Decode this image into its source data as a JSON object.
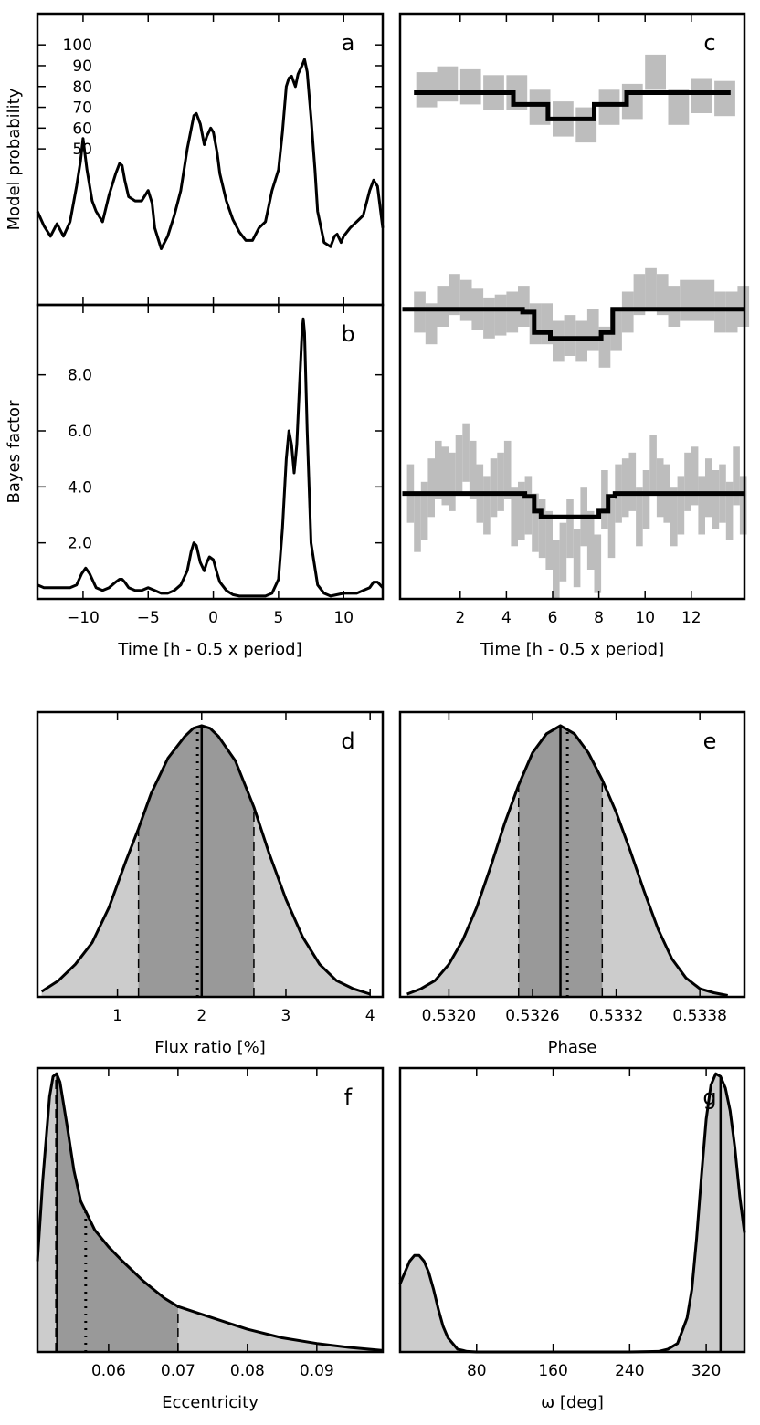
{
  "chart_data": [
    {
      "panel": "a",
      "type": "line",
      "ylabel": "Model probability",
      "xlabel": "",
      "xlim": [
        -13.5,
        13
      ],
      "ylim": [
        -25,
        115
      ],
      "xticks": [
        -10,
        -5,
        0,
        5,
        10
      ],
      "xtick_labels": [
        "",
        "",
        "",
        "",
        ""
      ],
      "yticks": [
        50,
        60,
        70,
        80,
        90,
        100
      ],
      "ytick_labels": [
        "50",
        "60",
        "70",
        "80",
        "90",
        "100"
      ],
      "series": [
        {
          "x": [
            -13.5,
            -13,
            -12.5,
            -12,
            -11.5,
            -11,
            -10.5,
            -10.2,
            -10,
            -9.7,
            -9.3,
            -9,
            -8.5,
            -8,
            -7.5,
            -7.2,
            -7,
            -6.8,
            -6.5,
            -6,
            -5.5,
            -5,
            -4.7,
            -4.5,
            -4,
            -3.5,
            -3,
            -2.5,
            -2,
            -1.5,
            -1.3,
            -1,
            -0.7,
            -0.5,
            -0.2,
            0,
            0.3,
            0.5,
            1,
            1.5,
            2,
            2.5,
            3,
            3.5,
            4,
            4.5,
            5,
            5.3,
            5.6,
            5.8,
            6,
            6.3,
            6.5,
            6.8,
            7,
            7.2,
            7.5,
            7.8,
            8,
            8.5,
            9,
            9.3,
            9.5,
            9.8,
            10,
            10.5,
            11,
            11.5,
            12,
            12.3,
            12.6,
            13
          ],
          "y": [
            20,
            13,
            8,
            14,
            8,
            15,
            32,
            44,
            55,
            40,
            25,
            20,
            15,
            28,
            38,
            43,
            42,
            35,
            27,
            25,
            25,
            30,
            24,
            12,
            2,
            8,
            18,
            30,
            50,
            66,
            67,
            62,
            52,
            56,
            60,
            58,
            48,
            38,
            25,
            16,
            10,
            6,
            6,
            12,
            15,
            30,
            40,
            58,
            80,
            84,
            85,
            80,
            86,
            90,
            93,
            87,
            65,
            40,
            20,
            5,
            3,
            8,
            9,
            5,
            8,
            12,
            15,
            18,
            30,
            35,
            32,
            12
          ]
        }
      ]
    },
    {
      "panel": "b",
      "type": "line",
      "ylabel": "Bayes factor",
      "xlabel": "Time [h - 0.5 x period]",
      "xlim": [
        -13.5,
        13
      ],
      "ylim": [
        0,
        10.5
      ],
      "xticks": [
        -10,
        -5,
        0,
        5,
        10
      ],
      "xtick_labels": [
        "−10",
        "−5",
        "0",
        "5",
        "10"
      ],
      "yticks": [
        2,
        4,
        6,
        8
      ],
      "ytick_labels": [
        "2.0",
        "4.0",
        "6.0",
        "8.0"
      ],
      "series": [
        {
          "x": [
            -13.5,
            -13,
            -12,
            -11,
            -10.5,
            -10.1,
            -9.8,
            -9.5,
            -9,
            -8.5,
            -8,
            -7.5,
            -7.2,
            -7,
            -6.8,
            -6.5,
            -6,
            -5.5,
            -5,
            -4.5,
            -4,
            -3.5,
            -3,
            -2.5,
            -2,
            -1.7,
            -1.5,
            -1.3,
            -1,
            -0.7,
            -0.5,
            -0.3,
            0,
            0.3,
            0.5,
            1,
            1.5,
            2,
            3,
            4,
            4.5,
            5,
            5.3,
            5.6,
            5.8,
            6,
            6.2,
            6.4,
            6.6,
            6.8,
            6.9,
            7,
            7.2,
            7.5,
            8,
            8.5,
            9,
            10,
            11,
            11.5,
            12,
            12.3,
            12.6,
            13
          ],
          "y": [
            0.5,
            0.4,
            0.4,
            0.4,
            0.5,
            0.9,
            1.1,
            0.9,
            0.4,
            0.3,
            0.4,
            0.6,
            0.7,
            0.7,
            0.6,
            0.4,
            0.3,
            0.3,
            0.4,
            0.3,
            0.2,
            0.2,
            0.3,
            0.5,
            1.0,
            1.7,
            2.0,
            1.9,
            1.3,
            1.0,
            1.3,
            1.5,
            1.4,
            0.9,
            0.6,
            0.3,
            0.15,
            0.1,
            0.1,
            0.1,
            0.2,
            0.7,
            2.5,
            5.0,
            6.0,
            5.5,
            4.5,
            5.5,
            7.5,
            9.5,
            10.0,
            9.5,
            6.0,
            2.0,
            0.5,
            0.2,
            0.1,
            0.2,
            0.2,
            0.3,
            0.4,
            0.6,
            0.6,
            0.4
          ]
        }
      ]
    },
    {
      "panel": "c",
      "type": "line",
      "xlabel": "Time [h - 0.5 x period]",
      "ylabel": "",
      "xlim": [
        -0.6,
        14.3
      ],
      "ylim": [
        0,
        100
      ],
      "xticks": [
        2,
        4,
        6,
        8,
        10,
        12
      ],
      "xtick_labels": [
        "2",
        "4",
        "6",
        "8",
        "10",
        "12"
      ],
      "series": [
        {
          "name": "",
          "data_x": [
            0.1,
            1.0,
            2.0,
            3.0,
            4.0,
            5.0,
            6.0,
            7.0,
            8.0,
            9.0,
            10.0,
            11.0,
            12.0,
            13.0
          ],
          "data_y": [
            87,
            88,
            87.5,
            86.5,
            86.5,
            84,
            82,
            81,
            84,
            85,
            90,
            84,
            86,
            85.5
          ],
          "model_x": [
            0,
            4.3,
            4.3,
            5.8,
            5.8,
            7.8,
            7.8,
            9.2,
            9.2,
            13.7
          ],
          "model_y": [
            86.5,
            86.5,
            84.5,
            84.5,
            82,
            82,
            84.5,
            84.5,
            86.5,
            86.5
          ]
        },
        {
          "name": "",
          "data_x": [
            0.0,
            0.5,
            1.0,
            1.5,
            2.0,
            2.5,
            3.0,
            3.5,
            4.0,
            4.5,
            5.0,
            5.5,
            6.0,
            6.5,
            7.0,
            7.5,
            8.0,
            8.5,
            9.0,
            9.5,
            10.0,
            10.5,
            11.0,
            11.5,
            12.0,
            12.5,
            13.0,
            13.5,
            14.0
          ],
          "data_y": [
            49,
            47,
            50,
            52,
            51,
            49.5,
            48,
            48.5,
            49,
            50,
            47,
            47,
            44,
            45,
            44,
            46,
            43,
            46,
            49,
            52,
            53,
            52,
            50,
            51,
            51,
            51,
            49,
            49,
            50
          ],
          "model_x": [
            -0.5,
            4.7,
            4.7,
            5.2,
            5.2,
            5.9,
            5.9,
            8.1,
            8.1,
            8.6,
            8.6,
            14.3
          ],
          "model_y": [
            49.5,
            49.5,
            49,
            49,
            45.5,
            45.5,
            44.5,
            44.5,
            45.5,
            45.5,
            49.5,
            49.5
          ]
        },
        {
          "name": "",
          "data_x": [
            -0.3,
            0.0,
            0.3,
            0.6,
            0.9,
            1.2,
            1.5,
            1.8,
            2.1,
            2.4,
            2.7,
            3.0,
            3.3,
            3.6,
            3.9,
            4.2,
            4.5,
            4.8,
            5.1,
            5.4,
            5.7,
            6.0,
            6.3,
            6.6,
            6.9,
            7.2,
            7.5,
            7.8,
            8.1,
            8.4,
            8.7,
            9.0,
            9.3,
            9.6,
            9.9,
            10.2,
            10.5,
            10.8,
            11.1,
            11.4,
            11.7,
            12.0,
            12.3,
            12.6,
            12.9,
            13.2,
            13.5,
            13.8,
            14.1
          ],
          "data_y": [
            18,
            13,
            15,
            19,
            22,
            21,
            20,
            23,
            25,
            22,
            18,
            16,
            19,
            20,
            22,
            14,
            15,
            16,
            13,
            12,
            10,
            5,
            8,
            12,
            7,
            14,
            10,
            6,
            17,
            12,
            18,
            19,
            20,
            14,
            17,
            23,
            19,
            18,
            14,
            16,
            20,
            21,
            16,
            19,
            17,
            18,
            15,
            21,
            16
          ],
          "model_x": [
            -0.5,
            4.8,
            4.8,
            5.2,
            5.2,
            5.5,
            5.5,
            8.0,
            8.0,
            8.4,
            8.4,
            8.7,
            8.7,
            14.3
          ],
          "model_y": [
            18,
            18,
            17.5,
            17.5,
            15,
            15,
            14,
            14,
            15,
            15,
            17.5,
            17.5,
            18,
            18
          ]
        }
      ]
    },
    {
      "panel": "d",
      "type": "area",
      "xlabel": "Flux ratio [%]",
      "ylabel": "",
      "xlim": [
        0.05,
        4.15
      ],
      "ylim": [
        0,
        1.05
      ],
      "xticks": [
        1,
        2,
        3,
        4
      ],
      "xtick_labels": [
        "1",
        "2",
        "3",
        "4"
      ],
      "median": 2.0,
      "mean": 1.95,
      "interval_68": [
        1.25,
        2.62
      ],
      "max_density": 1.0,
      "pdf": {
        "x": [
          0.1,
          0.3,
          0.5,
          0.7,
          0.9,
          1.1,
          1.25,
          1.4,
          1.6,
          1.8,
          1.9,
          2.0,
          2.1,
          2.2,
          2.4,
          2.62,
          2.8,
          3.0,
          3.2,
          3.4,
          3.6,
          3.8,
          4.0
        ],
        "y": [
          0.02,
          0.06,
          0.12,
          0.2,
          0.33,
          0.5,
          0.62,
          0.75,
          0.88,
          0.96,
          0.99,
          1.0,
          0.99,
          0.96,
          0.87,
          0.7,
          0.53,
          0.36,
          0.22,
          0.12,
          0.06,
          0.03,
          0.01
        ]
      }
    },
    {
      "panel": "e",
      "type": "area",
      "xlabel": "Phase",
      "ylabel": "",
      "xlim": [
        0.53165,
        0.53412
      ],
      "ylim": [
        0,
        1.05
      ],
      "xticks": [
        0.532,
        0.5326,
        0.5332,
        0.5338
      ],
      "xtick_labels": [
        "0.5320",
        "0.5326",
        "0.5332",
        "0.5338"
      ],
      "median": 0.5328,
      "mean": 0.53285,
      "interval_68": [
        0.5325,
        0.5331
      ],
      "max_density": 1.0,
      "pdf": {
        "x": [
          0.5317,
          0.5318,
          0.5319,
          0.532,
          0.5321,
          0.5322,
          0.5323,
          0.5324,
          0.5325,
          0.5326,
          0.5327,
          0.5328,
          0.5329,
          0.533,
          0.5331,
          0.5332,
          0.5333,
          0.5334,
          0.5335,
          0.5336,
          0.5337,
          0.5338,
          0.5339,
          0.534
        ],
        "y": [
          0.01,
          0.03,
          0.06,
          0.12,
          0.21,
          0.33,
          0.48,
          0.64,
          0.78,
          0.9,
          0.97,
          1.0,
          0.97,
          0.9,
          0.8,
          0.68,
          0.54,
          0.39,
          0.25,
          0.14,
          0.07,
          0.03,
          0.015,
          0.005
        ]
      }
    },
    {
      "panel": "f",
      "type": "area",
      "xlabel": "Eccentricity",
      "ylabel": "",
      "xlim": [
        0.04975,
        0.0995
      ],
      "ylim": [
        0,
        1.0
      ],
      "xticks": [
        0.06,
        0.07,
        0.08,
        0.09
      ],
      "xtick_labels": [
        "0.06",
        "0.07",
        "0.08",
        "0.09"
      ],
      "median": 0.0526,
      "mean": 0.0567,
      "interval_68": [
        0.0524,
        0.07
      ],
      "max_density": 0.98,
      "pdf": {
        "x": [
          0.04975,
          0.0505,
          0.0515,
          0.052,
          0.0525,
          0.053,
          0.054,
          0.055,
          0.056,
          0.058,
          0.06,
          0.062,
          0.065,
          0.068,
          0.07,
          0.075,
          0.08,
          0.085,
          0.09,
          0.095,
          0.0995
        ],
        "y": [
          0.32,
          0.6,
          0.9,
          0.97,
          0.98,
          0.95,
          0.8,
          0.64,
          0.53,
          0.43,
          0.37,
          0.32,
          0.25,
          0.19,
          0.16,
          0.12,
          0.08,
          0.05,
          0.03,
          0.015,
          0.005
        ]
      }
    },
    {
      "panel": "g",
      "type": "area",
      "xlabel": "ω [deg]",
      "ylabel": "",
      "xlim": [
        0,
        360
      ],
      "ylim": [
        0,
        1.0
      ],
      "xticks": [
        80,
        160,
        240,
        320
      ],
      "xtick_labels": [
        "80",
        "160",
        "240",
        "320"
      ],
      "median": 335,
      "max_density": 0.98,
      "pdf": {
        "x": [
          0,
          5,
          10,
          15,
          20,
          25,
          30,
          35,
          40,
          45,
          50,
          60,
          70,
          80,
          160,
          240,
          270,
          280,
          290,
          300,
          305,
          310,
          315,
          320,
          325,
          330,
          335,
          340,
          345,
          350,
          355,
          360
        ],
        "y": [
          0.24,
          0.28,
          0.32,
          0.34,
          0.34,
          0.32,
          0.28,
          0.22,
          0.15,
          0.09,
          0.05,
          0.01,
          0.002,
          0.0,
          0.0,
          0.0,
          0.002,
          0.01,
          0.03,
          0.12,
          0.22,
          0.4,
          0.62,
          0.82,
          0.94,
          0.98,
          0.97,
          0.93,
          0.85,
          0.72,
          0.55,
          0.42
        ]
      }
    }
  ],
  "panel_labels": [
    "a",
    "b",
    "c",
    "d",
    "e",
    "f",
    "g"
  ]
}
